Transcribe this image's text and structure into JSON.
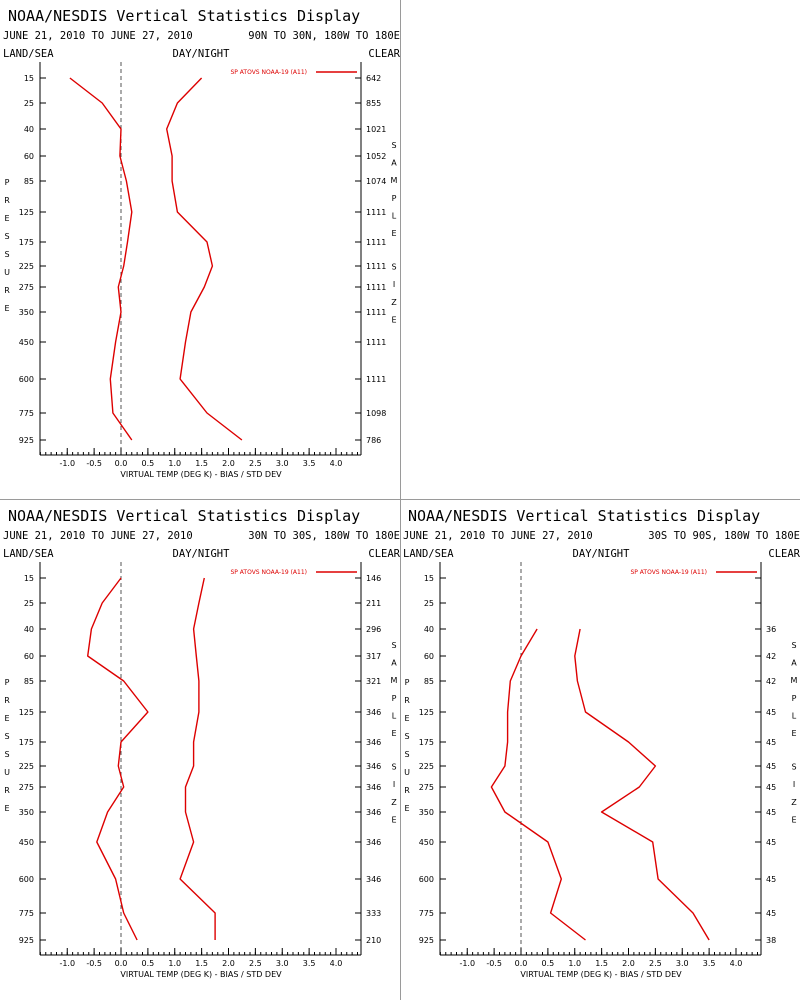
{
  "panels": [
    {
      "title": "NOAA/NESDIS Vertical Statistics Display",
      "date_range": "JUNE 21, 2010 TO JUNE 27, 2010",
      "region": "90N TO 30N, 180W TO 180E",
      "land_sea": "LAND/SEA",
      "day_night": "DAY/NIGHT",
      "clear": "CLEAR",
      "legend_label": "SP ATOVS NOAA-19 (A11)",
      "y_label": "PRESSURE",
      "right_label": "SAMPLE SIZE",
      "x_label": "VIRTUAL TEMP (DEG K) - BIAS / STD DEV",
      "sample_sizes": [
        "642",
        "855",
        "1021",
        "1052",
        "1074",
        "1111",
        "1111",
        "1111",
        "1111",
        "1111",
        "1111",
        "1111",
        "1098",
        "786"
      ]
    },
    {
      "title": "NOAA/NESDIS Vertical Statistics Display",
      "date_range": "JUNE 21, 2010 TO JUNE 27, 2010",
      "region": "30N TO 30S, 180W TO 180E",
      "land_sea": "LAND/SEA",
      "day_night": "DAY/NIGHT",
      "clear": "CLEAR",
      "legend_label": "SP ATOVS NOAA-19 (A11)",
      "y_label": "PRESSURE",
      "right_label": "SAMPLE SIZE",
      "x_label": "VIRTUAL TEMP (DEG K) - BIAS / STD DEV",
      "sample_sizes": [
        "146",
        "211",
        "296",
        "317",
        "321",
        "346",
        "346",
        "346",
        "346",
        "346",
        "346",
        "346",
        "333",
        "210"
      ]
    },
    {
      "title": "NOAA/NESDIS Vertical Statistics Display",
      "date_range": "JUNE 21, 2010 TO JUNE 27, 2010",
      "region": "30S TO 90S, 180W TO 180E",
      "land_sea": "LAND/SEA",
      "day_night": "DAY/NIGHT",
      "clear": "CLEAR",
      "legend_label": "SP ATOVS NOAA-19 (A11)",
      "y_label": "PRESSURE",
      "right_label": "SAMPLE SIZE",
      "x_label": "VIRTUAL TEMP (DEG K) - BIAS / STD DEV",
      "sample_sizes": [
        "",
        "",
        "36",
        "42",
        "42",
        "45",
        "45",
        "45",
        "45",
        "45",
        "45",
        "45",
        "45",
        "38"
      ]
    }
  ],
  "colors": {
    "series": "#dd0000",
    "text": "#000000",
    "zero_line": "#555555",
    "panel_separator": "#9a9a9a"
  },
  "chart_data": [
    {
      "type": "line",
      "title": "NOAA/NESDIS Vertical Statistics Display",
      "xlabel": "VIRTUAL TEMP (DEG K) - BIAS / STD DEV",
      "ylabel": "PRESSURE",
      "xlim": [
        -1.5,
        4.5
      ],
      "x_ticks": [
        "-1.0",
        "-0.5",
        "0.0",
        "0.5",
        "1.0",
        "1.5",
        "2.0",
        "2.5",
        "3.0",
        "3.5",
        "4.0"
      ],
      "pressure_levels": [
        "15",
        "25",
        "40",
        "60",
        "85",
        "125",
        "175",
        "225",
        "275",
        "350",
        "450",
        "600",
        "775",
        "925"
      ],
      "series": [
        {
          "name": "BIAS",
          "values": [
            -0.95,
            -0.35,
            0.0,
            -0.02,
            0.1,
            0.2,
            0.12,
            0.05,
            -0.05,
            0.0,
            -0.1,
            -0.2,
            -0.15,
            0.2
          ]
        },
        {
          "name": "STD DEV",
          "values": [
            1.5,
            1.05,
            0.85,
            0.95,
            0.95,
            1.05,
            1.6,
            1.7,
            1.55,
            1.3,
            1.2,
            1.1,
            1.6,
            2.25
          ]
        }
      ]
    },
    {
      "type": "line",
      "title": "NOAA/NESDIS Vertical Statistics Display",
      "xlabel": "VIRTUAL TEMP (DEG K) - BIAS / STD DEV",
      "ylabel": "PRESSURE",
      "xlim": [
        -1.5,
        4.5
      ],
      "x_ticks": [
        "-1.0",
        "-0.5",
        "0.0",
        "0.5",
        "1.0",
        "1.5",
        "2.0",
        "2.5",
        "3.0",
        "3.5",
        "4.0"
      ],
      "pressure_levels": [
        "15",
        "25",
        "40",
        "60",
        "85",
        "125",
        "175",
        "225",
        "275",
        "350",
        "450",
        "600",
        "775",
        "925"
      ],
      "series": [
        {
          "name": "BIAS",
          "values": [
            0.0,
            -0.35,
            -0.55,
            -0.62,
            0.05,
            0.5,
            0.0,
            -0.05,
            0.05,
            -0.25,
            -0.45,
            -0.1,
            0.05,
            0.3
          ]
        },
        {
          "name": "STD DEV",
          "values": [
            1.55,
            1.45,
            1.35,
            1.4,
            1.45,
            1.45,
            1.35,
            1.35,
            1.2,
            1.2,
            1.35,
            1.1,
            1.75,
            1.75
          ]
        }
      ]
    },
    {
      "type": "line",
      "title": "NOAA/NESDIS Vertical Statistics Display",
      "xlabel": "VIRTUAL TEMP (DEG K) - BIAS / STD DEV",
      "ylabel": "PRESSURE",
      "xlim": [
        -1.5,
        4.5
      ],
      "x_ticks": [
        "-1.0",
        "-0.5",
        "0.0",
        "0.5",
        "1.0",
        "1.5",
        "2.0",
        "2.5",
        "3.0",
        "3.5",
        "4.0"
      ],
      "pressure_levels": [
        "15",
        "25",
        "40",
        "60",
        "85",
        "125",
        "175",
        "225",
        "275",
        "350",
        "450",
        "600",
        "775",
        "925"
      ],
      "series": [
        {
          "name": "BIAS",
          "values": [
            null,
            null,
            0.3,
            0.0,
            -0.2,
            -0.25,
            -0.25,
            -0.3,
            -0.55,
            -0.3,
            0.5,
            0.75,
            0.55,
            1.2
          ]
        },
        {
          "name": "STD DEV",
          "values": [
            null,
            null,
            1.1,
            1.0,
            1.05,
            1.2,
            2.0,
            2.5,
            2.2,
            1.5,
            2.45,
            2.55,
            3.2,
            3.5
          ]
        }
      ]
    }
  ]
}
